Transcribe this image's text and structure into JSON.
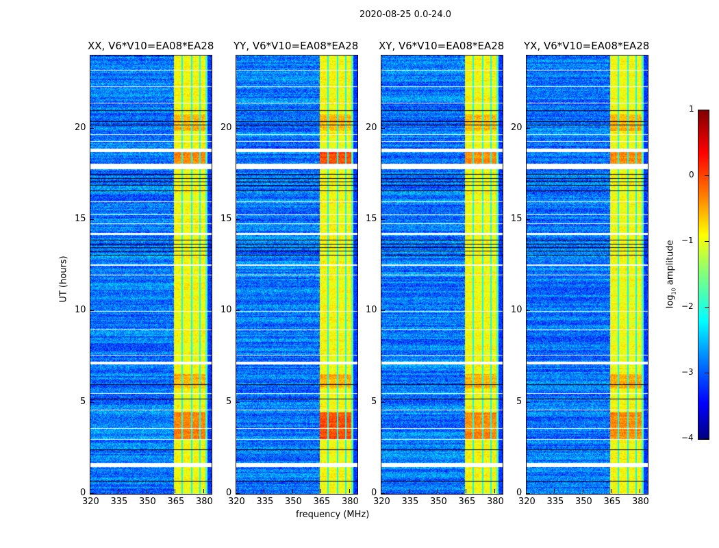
{
  "suptitle": "2020-08-25 0.0-24.0",
  "chart_data": {
    "type": "heatmap",
    "xlabel": "frequency (MHz)",
    "ylabel": "UT (hours)",
    "xlim": [
      320,
      384
    ],
    "ylim": [
      0,
      24
    ],
    "xticks": [
      "320",
      "335",
      "350",
      "365",
      "380"
    ],
    "yticks": [
      "0",
      "5",
      "10",
      "15",
      "20"
    ],
    "xtick_values": [
      320,
      335,
      350,
      365,
      380
    ],
    "ytick_values": [
      0,
      5,
      10,
      15,
      20
    ],
    "panels": [
      {
        "title": "XX, V6*V10=EA08*EA28"
      },
      {
        "title": "YY, V6*V10=EA08*EA28"
      },
      {
        "title": "XY, V6*V10=EA08*EA28"
      },
      {
        "title": "YX, V6*V10=EA08*EA28"
      }
    ],
    "rfi_band_mhz": [
      364,
      380.5
    ],
    "flagged_hours": [
      [
        1.5,
        1.7
      ],
      [
        7.1,
        7.25
      ],
      [
        12.5,
        12.6
      ],
      [
        14.2,
        14.3
      ],
      [
        17.8,
        18.1
      ],
      [
        18.75,
        18.9
      ]
    ],
    "colorbar": {
      "label": "log10 amplitude",
      "range": [
        -4,
        1
      ],
      "ticks": [
        "1",
        "0",
        "−1",
        "−2",
        "−3",
        "−4"
      ],
      "tick_values": [
        1,
        0,
        -1,
        -2,
        -3,
        -4
      ],
      "colormap": "jet"
    }
  }
}
